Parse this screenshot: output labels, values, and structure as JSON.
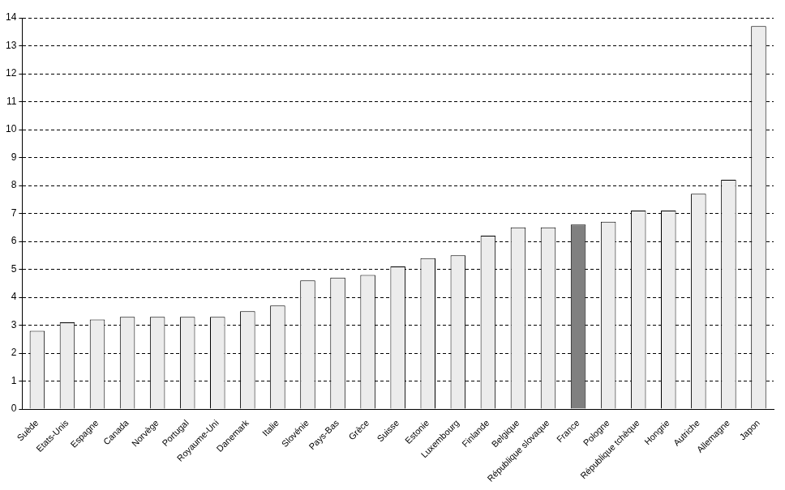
{
  "chart_data": {
    "type": "bar",
    "categories": [
      "Suède",
      "Etats-Unis",
      "Espagne",
      "Canada",
      "Norvège",
      "Portugal",
      "Royaume-Uni",
      "Danemark",
      "Italie",
      "Slovénie",
      "Pays-Bas",
      "Grèce",
      "Suisse",
      "Estonie",
      "Luxembourg",
      "Finlande",
      "Belgique",
      "République slovaque",
      "France",
      "Pologne",
      "République tchèque",
      "Hongrie",
      "Autriche",
      "Allemagne",
      "Japon"
    ],
    "values": [
      2.8,
      3.1,
      3.2,
      3.3,
      3.3,
      3.3,
      3.3,
      3.5,
      3.7,
      4.6,
      4.7,
      4.8,
      5.1,
      5.4,
      5.5,
      6.2,
      6.5,
      6.5,
      6.6,
      6.7,
      7.1,
      7.1,
      7.7,
      8.2,
      13.7
    ],
    "colors": [
      "#ececec",
      "#ececec",
      "#ececec",
      "#ececec",
      "#ececec",
      "#ececec",
      "#ececec",
      "#ececec",
      "#ececec",
      "#ececec",
      "#ececec",
      "#ececec",
      "#ececec",
      "#ececec",
      "#ececec",
      "#ececec",
      "#ececec",
      "#ececec",
      "#808080",
      "#ececec",
      "#ececec",
      "#ececec",
      "#ececec",
      "#ececec",
      "#ececec"
    ],
    "ylim": [
      0,
      14
    ],
    "yticks": [
      0,
      1,
      2,
      3,
      4,
      5,
      6,
      7,
      8,
      9,
      10,
      11,
      12,
      13,
      14
    ],
    "grid": true
  }
}
